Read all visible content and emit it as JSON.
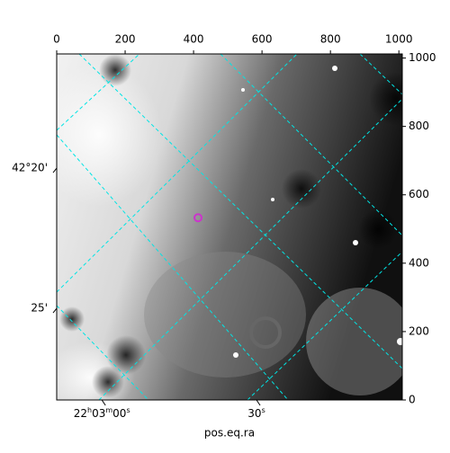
{
  "chart_data": {
    "type": "image",
    "xlabel": "pos.eq.ra",
    "xlim": [
      0,
      1010
    ],
    "ylim": [
      0,
      1012
    ],
    "xticks": [
      0,
      200,
      400,
      600,
      800,
      1000
    ],
    "yticks": [
      0,
      200,
      400,
      600,
      800,
      1000
    ],
    "ra_ticks": [
      {
        "value": 132,
        "label": "22h03m00s"
      },
      {
        "value": 584,
        "label": "30s"
      }
    ],
    "dec_ticks": [
      {
        "value": 678,
        "label": "42°20'"
      },
      {
        "value": 268,
        "label": "25'"
      }
    ],
    "grid_color": "#00e5e5",
    "series": [
      {
        "color": "#cc33cc",
        "x": [
          413
        ],
        "values": [
          533
        ]
      }
    ]
  }
}
